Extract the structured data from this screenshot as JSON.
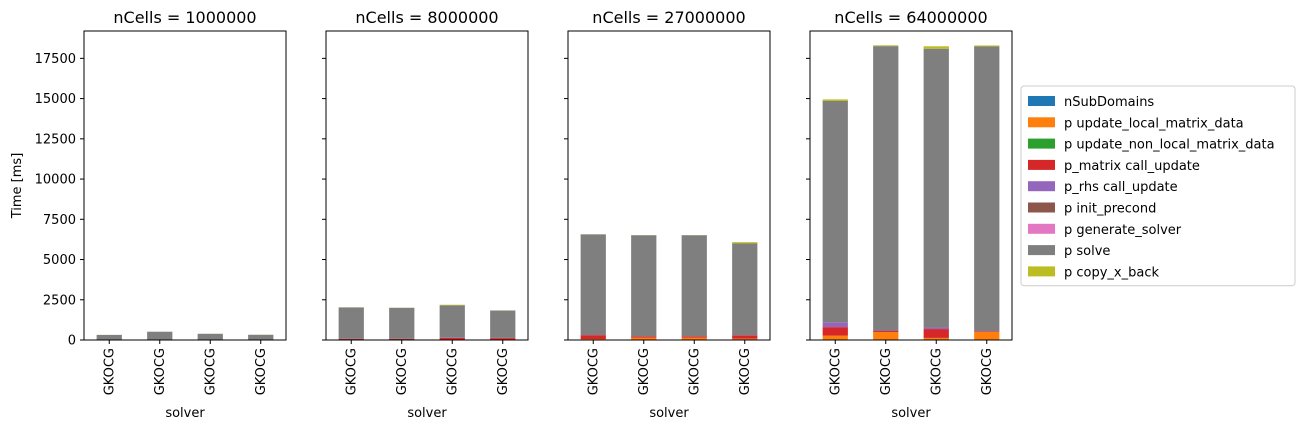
{
  "chart_data": {
    "type": "bar",
    "stacked": true,
    "ylabel": "Time [ms]",
    "xlabel": "solver",
    "ylim": [
      0,
      19200
    ],
    "yticks": [
      0,
      2500,
      5000,
      7500,
      10000,
      12500,
      15000,
      17500
    ],
    "shared_y": true,
    "legend_placement": "right",
    "series_names": [
      "nSubDomains",
      "p update_local_matrix_data",
      "p update_non_local_matrix_data",
      "p_matrix call_update",
      "p_rhs call_update",
      "p init_precond",
      "p generate_solver",
      "p solve",
      "p copy_x_back"
    ],
    "series_colors": [
      "#1f77b4",
      "#ff7f0e",
      "#2ca02c",
      "#d62728",
      "#9467bd",
      "#8c564b",
      "#e377c2",
      "#7f7f7f",
      "#bcbd22"
    ],
    "panels": [
      {
        "title": "nCells = 1000000",
        "categories": [
          "GKOCG",
          "GKOCG",
          "GKOCG",
          "GKOCG"
        ],
        "values": [
          [
            0,
            5,
            0,
            10,
            0,
            0,
            0,
            300,
            5
          ],
          [
            0,
            5,
            0,
            10,
            0,
            0,
            0,
            500,
            5
          ],
          [
            0,
            5,
            0,
            10,
            0,
            0,
            0,
            370,
            5
          ],
          [
            0,
            5,
            0,
            10,
            0,
            0,
            0,
            310,
            5
          ]
        ]
      },
      {
        "title": "nCells = 8000000",
        "categories": [
          "GKOCG",
          "GKOCG",
          "GKOCG",
          "GKOCG"
        ],
        "values": [
          [
            0,
            30,
            0,
            40,
            0,
            0,
            0,
            1950,
            10
          ],
          [
            0,
            30,
            0,
            40,
            0,
            0,
            0,
            1930,
            10
          ],
          [
            0,
            30,
            0,
            100,
            20,
            0,
            0,
            2000,
            40
          ],
          [
            0,
            30,
            0,
            90,
            10,
            0,
            0,
            1700,
            10
          ]
        ]
      },
      {
        "title": "nCells = 27000000",
        "categories": [
          "GKOCG",
          "GKOCG",
          "GKOCG",
          "GKOCG"
        ],
        "values": [
          [
            0,
            60,
            0,
            240,
            10,
            0,
            0,
            6250,
            10
          ],
          [
            0,
            150,
            0,
            80,
            10,
            0,
            0,
            6270,
            10
          ],
          [
            0,
            150,
            0,
            80,
            10,
            0,
            0,
            6270,
            10
          ],
          [
            0,
            80,
            0,
            200,
            20,
            0,
            0,
            5700,
            80
          ]
        ]
      },
      {
        "title": "nCells = 64000000",
        "categories": [
          "GKOCG",
          "GKOCG",
          "GKOCG",
          "GKOCG"
        ],
        "values": [
          [
            0,
            280,
            0,
            520,
            300,
            0,
            0,
            13750,
            100
          ],
          [
            0,
            500,
            0,
            60,
            30,
            0,
            0,
            17670,
            50
          ],
          [
            0,
            130,
            0,
            550,
            100,
            0,
            0,
            17320,
            150
          ],
          [
            0,
            500,
            0,
            40,
            20,
            0,
            0,
            17680,
            60
          ]
        ]
      }
    ]
  }
}
